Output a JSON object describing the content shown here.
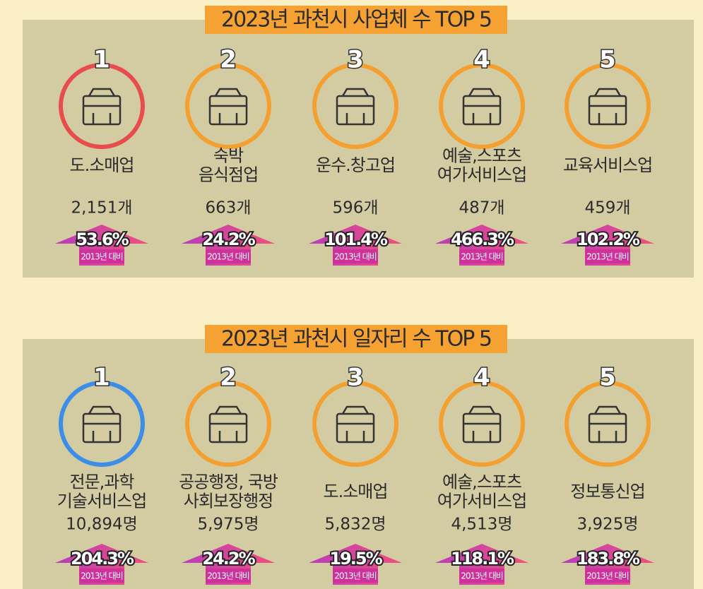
{
  "sections": [
    {
      "title": "2023년 과천시 사업체 수 TOP 5",
      "items": [
        {
          "rank": 1,
          "name": [
            "도.소매업"
          ],
          "count": "2,151개",
          "change": "53.6%",
          "base": "2013년 대비"
        },
        {
          "rank": 2,
          "name": [
            "숙박",
            "음식점업"
          ],
          "count": "663개",
          "change": "24.2%",
          "base": "2013년 대비"
        },
        {
          "rank": 3,
          "name": [
            "운수.창고업"
          ],
          "count": "596개",
          "change": "101.4%",
          "base": "2013년 대비"
        },
        {
          "rank": 4,
          "name": [
            "예술,스포츠",
            "여가서비스업"
          ],
          "count": "487개",
          "change": "466.3%",
          "base": "2013년 대비"
        },
        {
          "rank": 5,
          "name": [
            "교육서비스업"
          ],
          "count": "459개",
          "change": "102.2%",
          "base": "2013년 대비"
        }
      ]
    },
    {
      "title": "2023년 과천시 일자리 수 TOP 5",
      "items": [
        {
          "rank": 1,
          "name": [
            "전문,과학",
            "기술서비스업"
          ],
          "count": "10,894명",
          "change": "204.3%",
          "base": "2013년 대비"
        },
        {
          "rank": 2,
          "name": [
            "공공행정, 국방",
            "사회보장행정"
          ],
          "count": "5,975명",
          "change": "24.2%",
          "base": "2013년 대비"
        },
        {
          "rank": 3,
          "name": [
            "도.소매업"
          ],
          "count": "5,832명",
          "change": "19.5%",
          "base": "2013년 대비"
        },
        {
          "rank": 4,
          "name": [
            "예술,스포츠",
            "여가서비스업"
          ],
          "count": "4,513명",
          "change": "118.1%",
          "base": "2013년 대비"
        },
        {
          "rank": 5,
          "name": [
            "정보통신업"
          ],
          "count": "3,925명",
          "change": "183.8%",
          "base": "2013년 대비"
        }
      ]
    }
  ]
}
